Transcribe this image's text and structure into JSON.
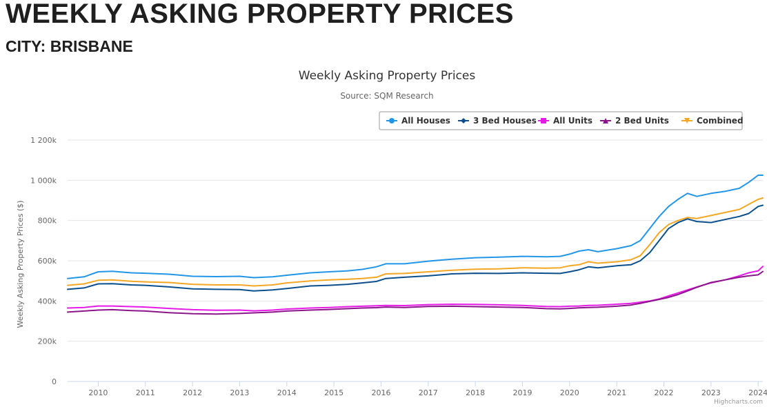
{
  "header": {
    "title": "WEEKLY ASKING PROPERTY PRICES",
    "subtitle": "CITY: BRISBANE"
  },
  "credits": "Highcharts.com",
  "chart_data": {
    "type": "line",
    "title": "Weekly Asking Property Prices",
    "subtitle": "Source: SQM Research",
    "xlabel": "",
    "ylabel": "Weekly Asking Property Prices ($)",
    "ylim": [
      0,
      1200000
    ],
    "xlim": [
      2009.35,
      2024.1
    ],
    "y_ticks": [
      0,
      200000,
      400000,
      600000,
      800000,
      1000000,
      1200000
    ],
    "y_tick_labels": [
      "0",
      "200k",
      "400k",
      "600k",
      "800k",
      "1 000k",
      "1 200k"
    ],
    "x_ticks": [
      2010,
      2011,
      2012,
      2013,
      2014,
      2015,
      2016,
      2017,
      2018,
      2019,
      2020,
      2021,
      2022,
      2023,
      2024
    ],
    "x_tick_labels": [
      "2010",
      "2011",
      "2012",
      "2013",
      "2014",
      "2015",
      "2016",
      "2017",
      "2018",
      "2019",
      "2020",
      "2021",
      "2022",
      "2023",
      "2024"
    ],
    "grid": true,
    "legend_position": "top-right",
    "series": [
      {
        "name": "All Houses",
        "color": "#2196e8",
        "marker": "circle",
        "points": [
          [
            2009.35,
            512000
          ],
          [
            2009.7,
            520000
          ],
          [
            2010.0,
            545000
          ],
          [
            2010.3,
            548000
          ],
          [
            2010.7,
            540000
          ],
          [
            2011.0,
            538000
          ],
          [
            2011.5,
            533000
          ],
          [
            2012.0,
            523000
          ],
          [
            2012.5,
            521000
          ],
          [
            2013.0,
            523000
          ],
          [
            2013.3,
            516000
          ],
          [
            2013.7,
            520000
          ],
          [
            2014.0,
            528000
          ],
          [
            2014.5,
            540000
          ],
          [
            2014.9,
            545000
          ],
          [
            2015.3,
            550000
          ],
          [
            2015.6,
            557000
          ],
          [
            2015.9,
            570000
          ],
          [
            2016.1,
            585000
          ],
          [
            2016.5,
            585000
          ],
          [
            2017.0,
            598000
          ],
          [
            2017.5,
            608000
          ],
          [
            2018.0,
            615000
          ],
          [
            2018.5,
            618000
          ],
          [
            2019.0,
            622000
          ],
          [
            2019.5,
            620000
          ],
          [
            2019.8,
            622000
          ],
          [
            2020.0,
            633000
          ],
          [
            2020.2,
            648000
          ],
          [
            2020.4,
            655000
          ],
          [
            2020.6,
            645000
          ],
          [
            2021.0,
            660000
          ],
          [
            2021.3,
            675000
          ],
          [
            2021.5,
            700000
          ],
          [
            2021.7,
            760000
          ],
          [
            2021.9,
            820000
          ],
          [
            2022.1,
            870000
          ],
          [
            2022.3,
            905000
          ],
          [
            2022.5,
            935000
          ],
          [
            2022.7,
            920000
          ],
          [
            2023.0,
            935000
          ],
          [
            2023.3,
            945000
          ],
          [
            2023.6,
            960000
          ],
          [
            2023.8,
            990000
          ],
          [
            2024.0,
            1025000
          ],
          [
            2024.1,
            1025000
          ]
        ]
      },
      {
        "name": "3 Bed Houses",
        "color": "#0a4f8c",
        "marker": "diamond",
        "points": [
          [
            2009.35,
            458000
          ],
          [
            2009.7,
            465000
          ],
          [
            2010.0,
            485000
          ],
          [
            2010.3,
            486000
          ],
          [
            2010.7,
            480000
          ],
          [
            2011.0,
            478000
          ],
          [
            2011.5,
            470000
          ],
          [
            2012.0,
            460000
          ],
          [
            2012.5,
            458000
          ],
          [
            2013.0,
            457000
          ],
          [
            2013.3,
            450000
          ],
          [
            2013.7,
            455000
          ],
          [
            2014.0,
            462000
          ],
          [
            2014.5,
            475000
          ],
          [
            2014.9,
            478000
          ],
          [
            2015.3,
            483000
          ],
          [
            2015.6,
            490000
          ],
          [
            2015.9,
            497000
          ],
          [
            2016.1,
            512000
          ],
          [
            2016.5,
            518000
          ],
          [
            2017.0,
            525000
          ],
          [
            2017.5,
            535000
          ],
          [
            2018.0,
            538000
          ],
          [
            2018.5,
            537000
          ],
          [
            2019.0,
            540000
          ],
          [
            2019.5,
            538000
          ],
          [
            2019.8,
            537000
          ],
          [
            2020.0,
            545000
          ],
          [
            2020.2,
            555000
          ],
          [
            2020.4,
            570000
          ],
          [
            2020.6,
            565000
          ],
          [
            2021.0,
            575000
          ],
          [
            2021.3,
            580000
          ],
          [
            2021.5,
            600000
          ],
          [
            2021.7,
            640000
          ],
          [
            2021.9,
            700000
          ],
          [
            2022.1,
            760000
          ],
          [
            2022.3,
            790000
          ],
          [
            2022.5,
            808000
          ],
          [
            2022.7,
            795000
          ],
          [
            2023.0,
            790000
          ],
          [
            2023.3,
            805000
          ],
          [
            2023.6,
            820000
          ],
          [
            2023.8,
            835000
          ],
          [
            2024.0,
            870000
          ],
          [
            2024.1,
            876000
          ]
        ]
      },
      {
        "name": "All Units",
        "color": "#e619e6",
        "marker": "square",
        "points": [
          [
            2009.35,
            365000
          ],
          [
            2009.7,
            368000
          ],
          [
            2010.0,
            375000
          ],
          [
            2010.3,
            375000
          ],
          [
            2010.7,
            372000
          ],
          [
            2011.0,
            370000
          ],
          [
            2011.5,
            363000
          ],
          [
            2012.0,
            357000
          ],
          [
            2012.5,
            354000
          ],
          [
            2013.0,
            355000
          ],
          [
            2013.3,
            351000
          ],
          [
            2013.7,
            355000
          ],
          [
            2014.0,
            360000
          ],
          [
            2014.5,
            365000
          ],
          [
            2014.9,
            368000
          ],
          [
            2015.3,
            372000
          ],
          [
            2015.6,
            374000
          ],
          [
            2015.9,
            376000
          ],
          [
            2016.1,
            378000
          ],
          [
            2016.5,
            377000
          ],
          [
            2017.0,
            382000
          ],
          [
            2017.5,
            384000
          ],
          [
            2018.0,
            383000
          ],
          [
            2018.5,
            381000
          ],
          [
            2019.0,
            378000
          ],
          [
            2019.5,
            373000
          ],
          [
            2019.8,
            372000
          ],
          [
            2020.0,
            374000
          ],
          [
            2020.2,
            375000
          ],
          [
            2020.4,
            378000
          ],
          [
            2020.6,
            379000
          ],
          [
            2021.0,
            384000
          ],
          [
            2021.3,
            388000
          ],
          [
            2021.5,
            394000
          ],
          [
            2021.7,
            400000
          ],
          [
            2021.9,
            410000
          ],
          [
            2022.1,
            425000
          ],
          [
            2022.3,
            440000
          ],
          [
            2022.5,
            455000
          ],
          [
            2022.7,
            470000
          ],
          [
            2023.0,
            490000
          ],
          [
            2023.3,
            505000
          ],
          [
            2023.6,
            525000
          ],
          [
            2023.8,
            540000
          ],
          [
            2024.0,
            550000
          ],
          [
            2024.1,
            572000
          ]
        ]
      },
      {
        "name": "2 Bed Units",
        "color": "#8b158b",
        "marker": "triangle",
        "points": [
          [
            2009.35,
            345000
          ],
          [
            2009.7,
            350000
          ],
          [
            2010.0,
            355000
          ],
          [
            2010.3,
            357000
          ],
          [
            2010.7,
            352000
          ],
          [
            2011.0,
            350000
          ],
          [
            2011.5,
            342000
          ],
          [
            2012.0,
            337000
          ],
          [
            2012.5,
            335000
          ],
          [
            2013.0,
            338000
          ],
          [
            2013.3,
            341000
          ],
          [
            2013.7,
            345000
          ],
          [
            2014.0,
            350000
          ],
          [
            2014.5,
            355000
          ],
          [
            2014.9,
            358000
          ],
          [
            2015.3,
            362000
          ],
          [
            2015.6,
            365000
          ],
          [
            2015.9,
            367000
          ],
          [
            2016.1,
            370000
          ],
          [
            2016.5,
            368000
          ],
          [
            2017.0,
            373000
          ],
          [
            2017.5,
            374000
          ],
          [
            2018.0,
            372000
          ],
          [
            2018.5,
            370000
          ],
          [
            2019.0,
            368000
          ],
          [
            2019.5,
            362000
          ],
          [
            2019.8,
            361000
          ],
          [
            2020.0,
            363000
          ],
          [
            2020.2,
            366000
          ],
          [
            2020.4,
            368000
          ],
          [
            2020.6,
            369000
          ],
          [
            2021.0,
            374000
          ],
          [
            2021.3,
            380000
          ],
          [
            2021.5,
            388000
          ],
          [
            2021.7,
            398000
          ],
          [
            2021.9,
            408000
          ],
          [
            2022.1,
            418000
          ],
          [
            2022.3,
            432000
          ],
          [
            2022.5,
            450000
          ],
          [
            2022.7,
            468000
          ],
          [
            2023.0,
            492000
          ],
          [
            2023.3,
            505000
          ],
          [
            2023.6,
            518000
          ],
          [
            2023.8,
            525000
          ],
          [
            2024.0,
            530000
          ],
          [
            2024.1,
            547000
          ]
        ]
      },
      {
        "name": "Combined",
        "color": "#f5a623",
        "marker": "triangle-down",
        "points": [
          [
            2009.35,
            478000
          ],
          [
            2009.7,
            485000
          ],
          [
            2010.0,
            503000
          ],
          [
            2010.3,
            505000
          ],
          [
            2010.7,
            498000
          ],
          [
            2011.0,
            495000
          ],
          [
            2011.5,
            492000
          ],
          [
            2012.0,
            483000
          ],
          [
            2012.5,
            480000
          ],
          [
            2013.0,
            480000
          ],
          [
            2013.3,
            475000
          ],
          [
            2013.7,
            480000
          ],
          [
            2014.0,
            490000
          ],
          [
            2014.5,
            500000
          ],
          [
            2014.9,
            505000
          ],
          [
            2015.3,
            508000
          ],
          [
            2015.6,
            512000
          ],
          [
            2015.9,
            518000
          ],
          [
            2016.1,
            535000
          ],
          [
            2016.5,
            537000
          ],
          [
            2017.0,
            545000
          ],
          [
            2017.5,
            553000
          ],
          [
            2018.0,
            558000
          ],
          [
            2018.5,
            560000
          ],
          [
            2019.0,
            565000
          ],
          [
            2019.5,
            563000
          ],
          [
            2019.8,
            565000
          ],
          [
            2020.0,
            575000
          ],
          [
            2020.2,
            580000
          ],
          [
            2020.4,
            595000
          ],
          [
            2020.6,
            588000
          ],
          [
            2021.0,
            595000
          ],
          [
            2021.3,
            605000
          ],
          [
            2021.5,
            625000
          ],
          [
            2021.7,
            680000
          ],
          [
            2021.9,
            740000
          ],
          [
            2022.1,
            780000
          ],
          [
            2022.3,
            800000
          ],
          [
            2022.5,
            815000
          ],
          [
            2022.7,
            810000
          ],
          [
            2023.0,
            825000
          ],
          [
            2023.3,
            840000
          ],
          [
            2023.6,
            855000
          ],
          [
            2023.8,
            880000
          ],
          [
            2024.0,
            905000
          ],
          [
            2024.1,
            912000
          ]
        ]
      }
    ]
  }
}
